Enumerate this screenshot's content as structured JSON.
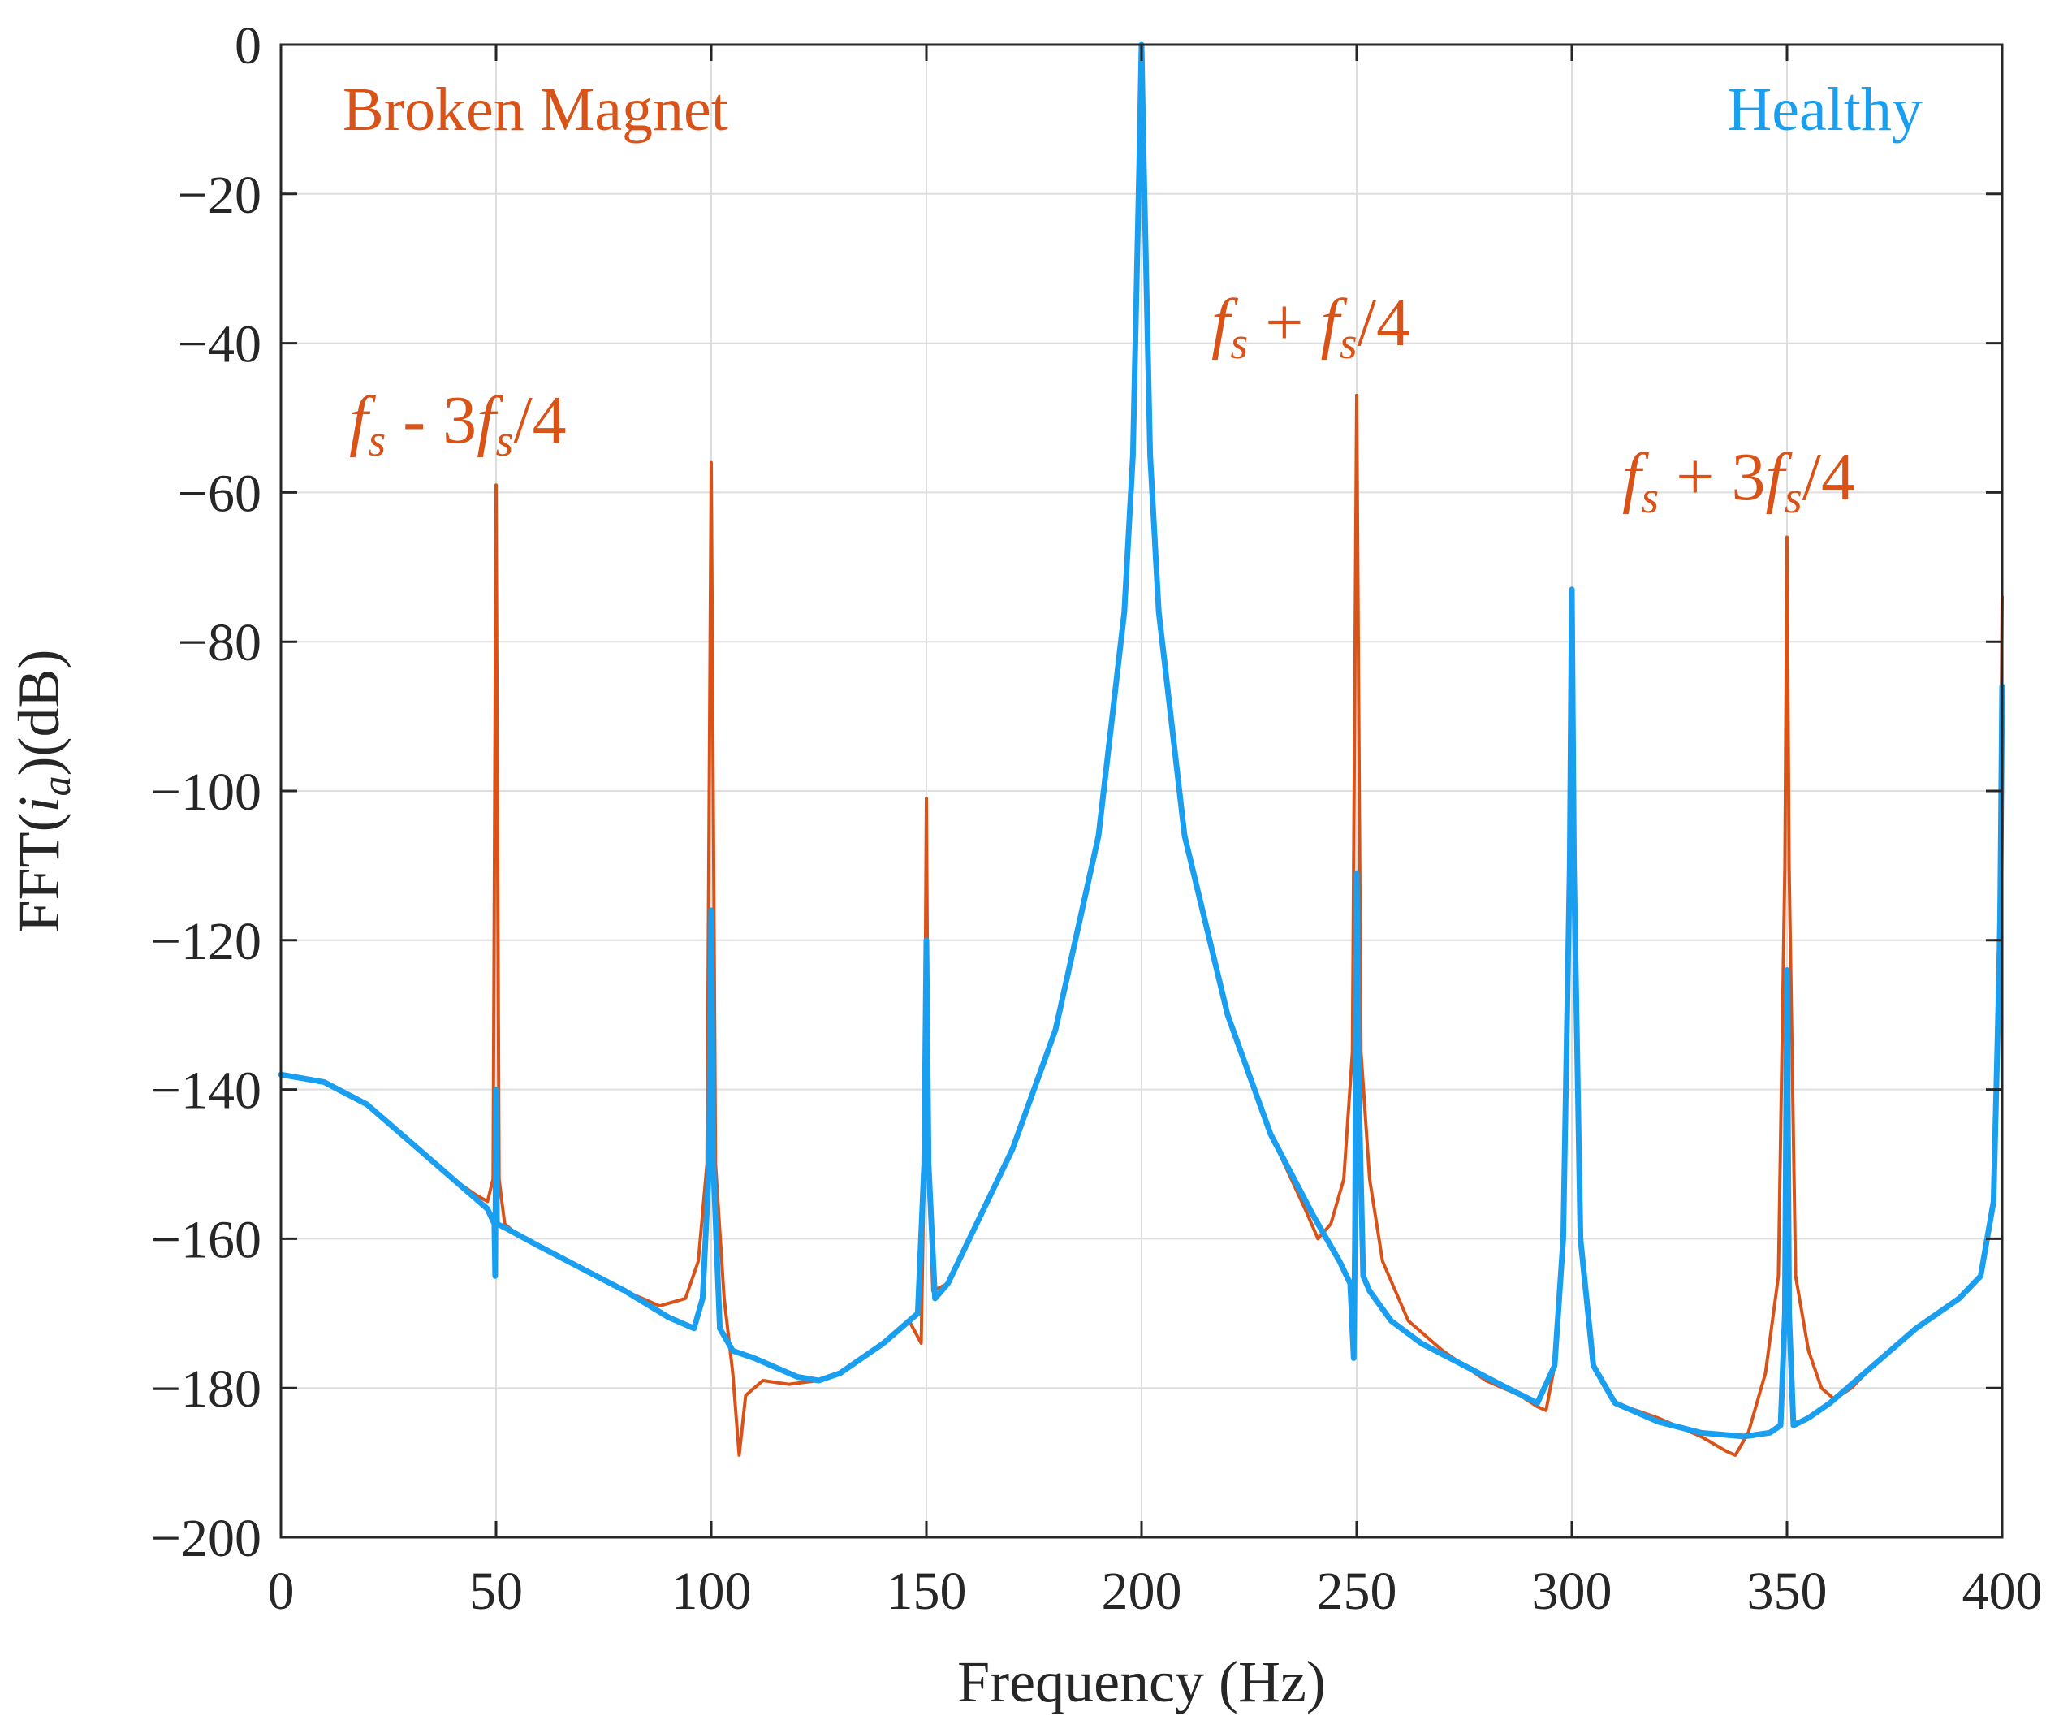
{
  "chart_data": {
    "type": "line",
    "title": "",
    "xlabel": "Frequency (Hz)",
    "ylabel": "FFT(i_a)(dB)",
    "ylabel_parts": {
      "prefix": "FFT(",
      "var": "i",
      "sub": "a",
      "suffix": ")(dB)"
    },
    "xlim": [
      0,
      400
    ],
    "ylim": [
      -200,
      0
    ],
    "xticks": [
      0,
      50,
      100,
      150,
      200,
      250,
      300,
      350,
      400
    ],
    "yticks": [
      0,
      -20,
      -40,
      -60,
      -80,
      -100,
      -120,
      -140,
      -160,
      -180,
      -200
    ],
    "xtick_labels": [
      "0",
      "50",
      "100",
      "150",
      "200",
      "250",
      "300",
      "350",
      "400"
    ],
    "ytick_labels": [
      "0",
      "−20",
      "−40",
      "−60",
      "−80",
      "−100",
      "−120",
      "−140",
      "−160",
      "−180",
      "−200"
    ],
    "grid": true,
    "legend": [
      {
        "label": "Broken Magnet",
        "color": "#D95319",
        "placement": "top-left"
      },
      {
        "label": "Healthy",
        "color": "#1A9EF0",
        "placement": "top-right"
      }
    ],
    "annotations": [
      {
        "id": "fs-minus-3fs4",
        "text": "f_s - 3f_s/4",
        "x": 50,
        "y": -52
      },
      {
        "id": "fs-plus-fs4",
        "text": "f_s + f_s/4",
        "x": 250,
        "y": -41
      },
      {
        "id": "fs-plus-3fs4",
        "text": "f_s + 3f_s/4",
        "x": 350,
        "y": -62
      }
    ],
    "series": [
      {
        "name": "Broken Magnet",
        "color": "#D95319",
        "points": [
          [
            0,
            -138
          ],
          [
            10,
            -139
          ],
          [
            20,
            -142
          ],
          [
            30,
            -147
          ],
          [
            40,
            -152
          ],
          [
            45,
            -154
          ],
          [
            48,
            -155
          ],
          [
            49.3,
            -152
          ],
          [
            50,
            -59
          ],
          [
            50.7,
            -152
          ],
          [
            52,
            -158
          ],
          [
            55,
            -159.5
          ],
          [
            60,
            -161
          ],
          [
            70,
            -164
          ],
          [
            80,
            -167
          ],
          [
            88,
            -169
          ],
          [
            94,
            -168
          ],
          [
            97,
            -163
          ],
          [
            99,
            -150
          ],
          [
            100,
            -56
          ],
          [
            101,
            -150
          ],
          [
            103,
            -168
          ],
          [
            105,
            -178
          ],
          [
            106.5,
            -189
          ],
          [
            108,
            -181
          ],
          [
            112,
            -179
          ],
          [
            118,
            -179.5
          ],
          [
            125,
            -179
          ],
          [
            130,
            -178
          ],
          [
            140,
            -174
          ],
          [
            146,
            -171
          ],
          [
            148.8,
            -174
          ],
          [
            149.5,
            -150
          ],
          [
            150,
            -101
          ],
          [
            150.5,
            -150
          ],
          [
            151.5,
            -167
          ],
          [
            155,
            -166
          ],
          [
            160,
            -160
          ],
          [
            170,
            -148
          ],
          [
            180,
            -132
          ],
          [
            190,
            -106
          ],
          [
            196,
            -76
          ],
          [
            198,
            -55
          ],
          [
            199.5,
            -15
          ],
          [
            200,
            0
          ],
          [
            200.5,
            -15
          ],
          [
            202,
            -55
          ],
          [
            204,
            -76
          ],
          [
            210,
            -106
          ],
          [
            220,
            -130
          ],
          [
            230,
            -146
          ],
          [
            238,
            -156
          ],
          [
            241,
            -160
          ],
          [
            244,
            -158
          ],
          [
            247,
            -152
          ],
          [
            249,
            -135
          ],
          [
            250,
            -47
          ],
          [
            251,
            -135
          ],
          [
            253,
            -152
          ],
          [
            256,
            -163
          ],
          [
            262,
            -171
          ],
          [
            270,
            -175
          ],
          [
            280,
            -179
          ],
          [
            288,
            -181
          ],
          [
            292,
            -182.5
          ],
          [
            294,
            -183
          ],
          [
            296,
            -177
          ],
          [
            298,
            -160
          ],
          [
            299.5,
            -110
          ],
          [
            300,
            -73
          ],
          [
            300.5,
            -110
          ],
          [
            302,
            -160
          ],
          [
            305,
            -177
          ],
          [
            310,
            -182
          ],
          [
            320,
            -184
          ],
          [
            330,
            -186.5
          ],
          [
            336,
            -188.5
          ],
          [
            338,
            -189
          ],
          [
            341,
            -186
          ],
          [
            345,
            -178
          ],
          [
            348,
            -165
          ],
          [
            349.5,
            -110
          ],
          [
            350,
            -66
          ],
          [
            350.5,
            -110
          ],
          [
            352,
            -165
          ],
          [
            355,
            -175
          ],
          [
            358,
            -180
          ],
          [
            361,
            -181.5
          ],
          [
            365,
            -180
          ],
          [
            370,
            -177
          ],
          [
            380,
            -172
          ],
          [
            390,
            -168
          ],
          [
            395,
            -165
          ],
          [
            398,
            -155
          ],
          [
            399.5,
            -110
          ],
          [
            400,
            -74
          ]
        ]
      },
      {
        "name": "Healthy",
        "color": "#1A9EF0",
        "points": [
          [
            0,
            -138
          ],
          [
            10,
            -139
          ],
          [
            20,
            -142
          ],
          [
            30,
            -147
          ],
          [
            40,
            -152
          ],
          [
            45,
            -154.5
          ],
          [
            48,
            -156
          ],
          [
            49.6,
            -158
          ],
          [
            49.8,
            -165
          ],
          [
            50,
            -140
          ],
          [
            50.2,
            -158
          ],
          [
            52,
            -158.5
          ],
          [
            60,
            -161
          ],
          [
            70,
            -164
          ],
          [
            80,
            -167
          ],
          [
            90,
            -170.5
          ],
          [
            96,
            -172
          ],
          [
            98,
            -168
          ],
          [
            99.5,
            -150
          ],
          [
            100,
            -116
          ],
          [
            100.5,
            -150
          ],
          [
            102,
            -172
          ],
          [
            105,
            -175
          ],
          [
            110,
            -176
          ],
          [
            120,
            -178.5
          ],
          [
            125,
            -179
          ],
          [
            130,
            -178
          ],
          [
            140,
            -174
          ],
          [
            148,
            -170
          ],
          [
            149.5,
            -150
          ],
          [
            150,
            -120
          ],
          [
            150.5,
            -150
          ],
          [
            152,
            -168
          ],
          [
            155,
            -166
          ],
          [
            160,
            -160
          ],
          [
            170,
            -148
          ],
          [
            180,
            -132
          ],
          [
            190,
            -106
          ],
          [
            196,
            -76
          ],
          [
            198,
            -55
          ],
          [
            199.5,
            -15
          ],
          [
            200,
            0
          ],
          [
            200.5,
            -15
          ],
          [
            202,
            -55
          ],
          [
            204,
            -76
          ],
          [
            210,
            -106
          ],
          [
            220,
            -130
          ],
          [
            230,
            -146
          ],
          [
            240,
            -157
          ],
          [
            246,
            -163
          ],
          [
            248.5,
            -166
          ],
          [
            249.3,
            -176
          ],
          [
            249.6,
            -160
          ],
          [
            250,
            -111
          ],
          [
            250.5,
            -140
          ],
          [
            251.5,
            -165
          ],
          [
            253,
            -167
          ],
          [
            258,
            -171
          ],
          [
            265,
            -174
          ],
          [
            275,
            -177
          ],
          [
            285,
            -180
          ],
          [
            292,
            -182
          ],
          [
            296,
            -177
          ],
          [
            298,
            -160
          ],
          [
            299.5,
            -110
          ],
          [
            300,
            -73
          ],
          [
            300.5,
            -110
          ],
          [
            302,
            -160
          ],
          [
            305,
            -177
          ],
          [
            310,
            -182
          ],
          [
            320,
            -184.5
          ],
          [
            330,
            -186
          ],
          [
            340,
            -186.5
          ],
          [
            346,
            -186
          ],
          [
            348.5,
            -185
          ],
          [
            349.5,
            -170
          ],
          [
            350,
            -124
          ],
          [
            350.5,
            -170
          ],
          [
            351.5,
            -185
          ],
          [
            355,
            -184
          ],
          [
            360,
            -182
          ],
          [
            370,
            -177
          ],
          [
            380,
            -172
          ],
          [
            390,
            -168
          ],
          [
            395,
            -165
          ],
          [
            398,
            -155
          ],
          [
            399.5,
            -120
          ],
          [
            400,
            -86
          ]
        ]
      }
    ]
  }
}
